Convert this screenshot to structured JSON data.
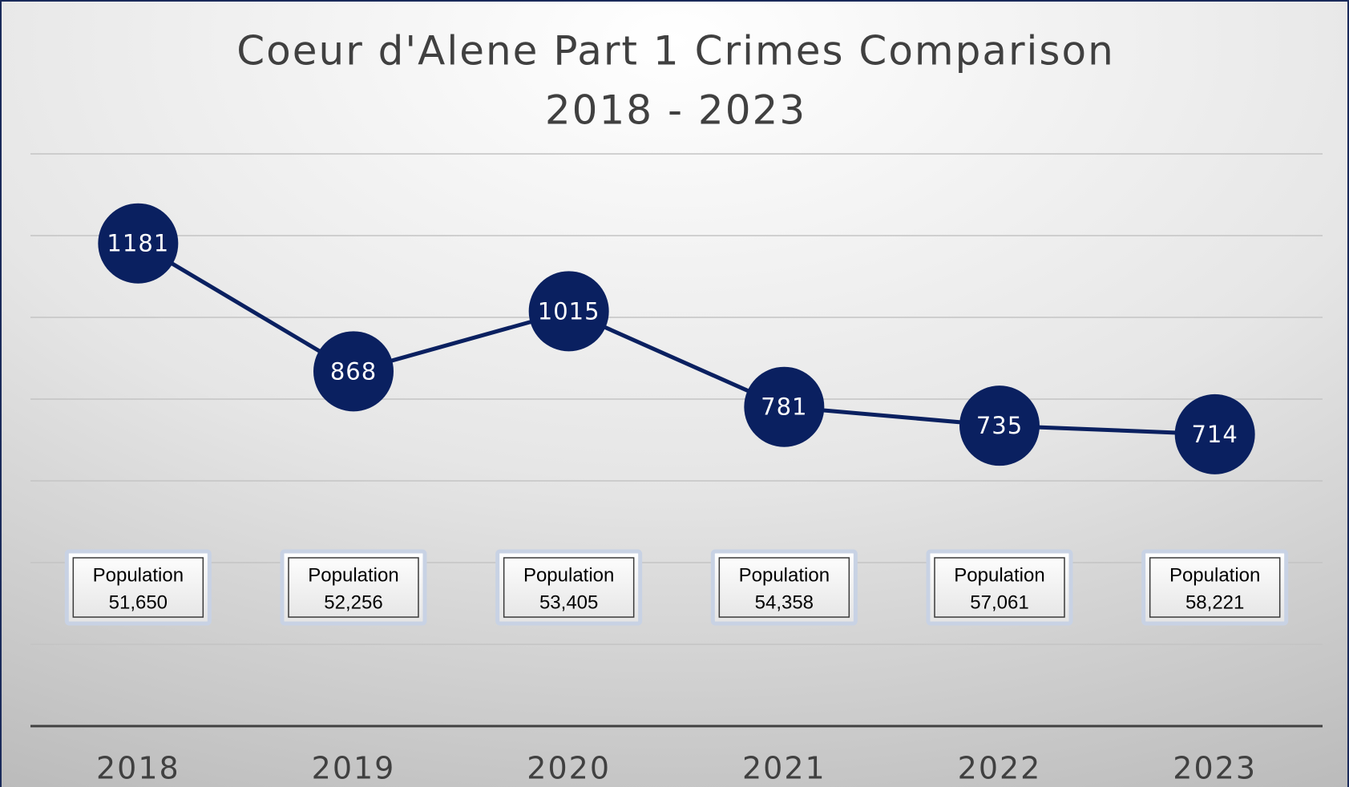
{
  "chart_data": {
    "type": "line",
    "title": "Coeur d'Alene Part 1 Crimes Comparison",
    "subtitle": "2018 - 2023",
    "categories": [
      "2018",
      "2019",
      "2020",
      "2021",
      "2022",
      "2023"
    ],
    "values": [
      1181,
      868,
      1015,
      781,
      735,
      714
    ],
    "color": "#0a2060",
    "ylim": [
      0,
      1400
    ],
    "yticks": [
      0,
      200,
      400,
      600,
      800,
      1000,
      1200,
      1400
    ],
    "grid": true,
    "annotations": [
      {
        "text": "Population",
        "value": "51,650"
      },
      {
        "text": "Population",
        "value": "52,256"
      },
      {
        "text": "Population",
        "value": "53,405"
      },
      {
        "text": "Population",
        "value": "54,358"
      },
      {
        "text": "Population",
        "value": "57,061"
      },
      {
        "text": "Population",
        "value": "58,221"
      }
    ]
  }
}
